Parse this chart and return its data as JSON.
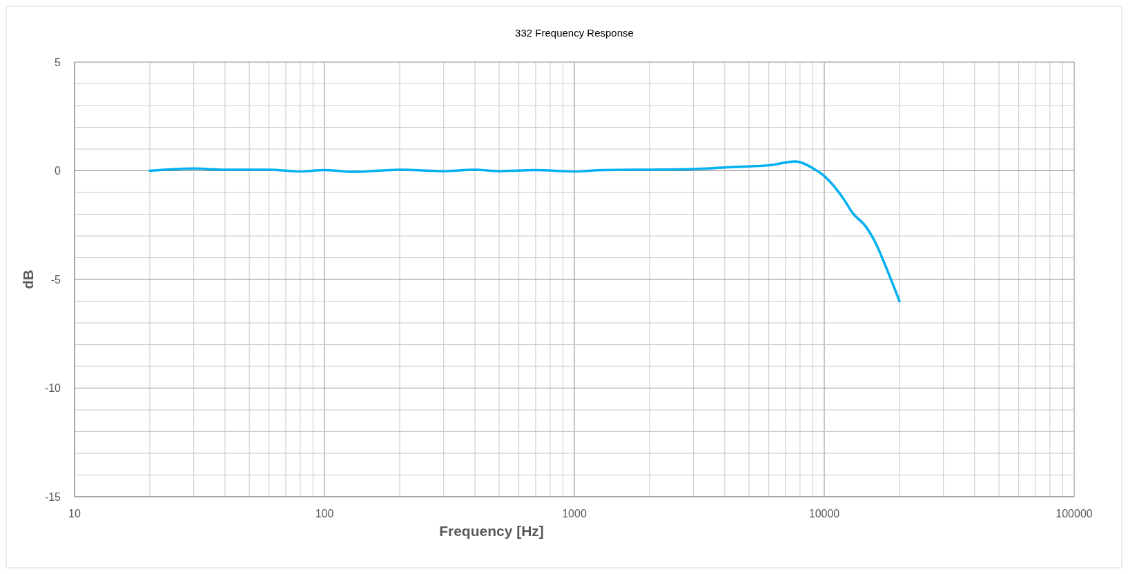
{
  "chart_data": {
    "type": "line",
    "title": "332 Frequency Response",
    "xlabel": "Frequency [Hz]",
    "ylabel": "dB",
    "log": "x",
    "grid": true,
    "marker": "none",
    "line_style": "solid",
    "xlim": [
      10,
      100000
    ],
    "ylim": [
      -15,
      5
    ],
    "xticks": [
      10,
      {
        "value": 20,
        "label": null
      },
      {
        "value": 30,
        "label": null
      },
      {
        "value": 40,
        "label": null
      },
      {
        "value": 50,
        "label": null
      },
      {
        "value": 60,
        "label": null
      },
      {
        "value": 70,
        "label": null
      },
      {
        "value": 80,
        "label": null
      },
      {
        "value": 90,
        "label": null
      },
      100,
      {
        "value": 200,
        "label": null
      },
      {
        "value": 300,
        "label": null
      },
      {
        "value": 400,
        "label": null
      },
      {
        "value": 500,
        "label": null
      },
      {
        "value": 600,
        "label": null
      },
      {
        "value": 700,
        "label": null
      },
      {
        "value": 800,
        "label": null
      },
      {
        "value": 900,
        "label": null
      },
      1000,
      {
        "value": 2000,
        "label": null
      },
      {
        "value": 3000,
        "label": null
      },
      {
        "value": 4000,
        "label": null
      },
      {
        "value": 5000,
        "label": null
      },
      {
        "value": 6000,
        "label": null
      },
      {
        "value": 7000,
        "label": null
      },
      {
        "value": 8000,
        "label": null
      },
      {
        "value": 9000,
        "label": null
      },
      10000,
      {
        "value": 20000,
        "label": null
      },
      {
        "value": 30000,
        "label": null
      },
      {
        "value": 40000,
        "label": null
      },
      {
        "value": 50000,
        "label": null
      },
      {
        "value": 60000,
        "label": null
      },
      {
        "value": 70000,
        "label": null
      },
      {
        "value": 80000,
        "label": null
      },
      {
        "value": 90000,
        "label": null
      },
      100000
    ],
    "yticks": [
      -15,
      {
        "value": -14,
        "label": null
      },
      {
        "value": -13,
        "label": null
      },
      {
        "value": -12,
        "label": null
      },
      {
        "value": -11,
        "label": null
      },
      -10,
      {
        "value": -9,
        "label": null
      },
      {
        "value": -8,
        "label": null
      },
      {
        "value": -7,
        "label": null
      },
      {
        "value": -6,
        "label": null
      },
      -5,
      {
        "value": -4,
        "label": null
      },
      {
        "value": -3,
        "label": null
      },
      {
        "value": -2,
        "label": null
      },
      {
        "value": -1,
        "label": null
      },
      0,
      {
        "value": 1,
        "label": null
      },
      {
        "value": 2,
        "label": null
      },
      {
        "value": 3,
        "label": null
      },
      {
        "value": 4,
        "label": null
      },
      5
    ],
    "x": [
      20,
      30,
      40,
      60,
      80,
      100,
      130,
      200,
      300,
      400,
      500,
      700,
      1000,
      1300,
      2000,
      3000,
      4000,
      5000,
      6000,
      7650,
      9000,
      10000,
      11960,
      12980,
      14650,
      15850,
      17900,
      20000
    ],
    "series": [
      {
        "color": "#00b0f0",
        "values": [
          0,
          0.1,
          0.05,
          0.05,
          -0.03,
          0.03,
          -0.05,
          0.05,
          -0.02,
          0.05,
          -0.02,
          0.03,
          -0.03,
          0.03,
          0.05,
          0.08,
          0.15,
          0.2,
          0.25,
          0.43,
          0.12,
          -0.24,
          -1.3,
          -1.94,
          -2.56,
          -3.2,
          -4.6,
          -6
        ]
      }
    ]
  }
}
